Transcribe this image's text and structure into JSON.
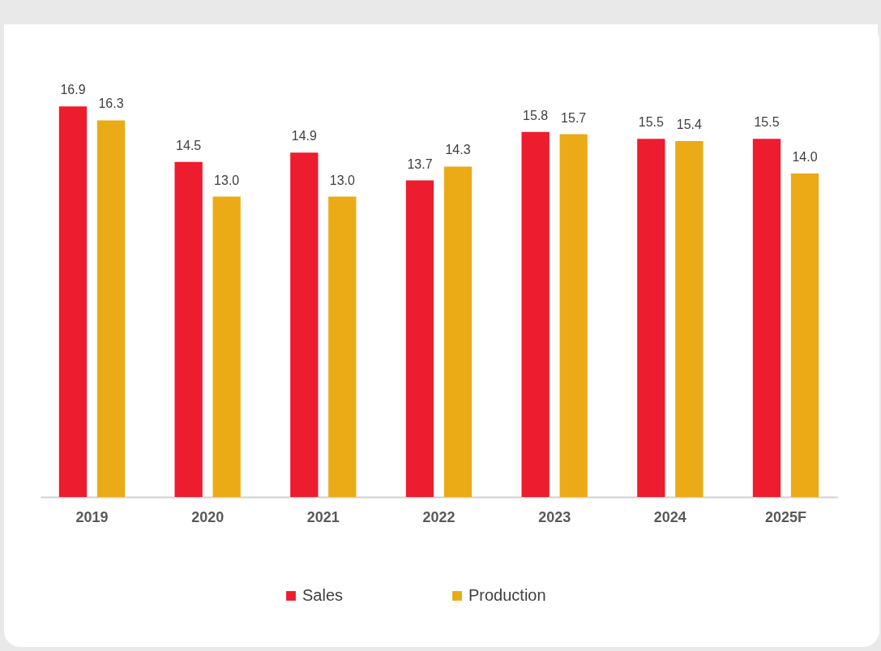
{
  "chart_data": {
    "type": "bar",
    "categories": [
      "2019",
      "2020",
      "2021",
      "2022",
      "2023",
      "2024",
      "2025F"
    ],
    "series": [
      {
        "name": "Sales",
        "color": "#ed1c2e",
        "values": [
          16.9,
          14.5,
          14.9,
          13.7,
          15.8,
          15.5,
          15.5
        ],
        "value_labels": [
          "16.9",
          "14.5",
          "14.9",
          "13.7",
          "15.8",
          "15.5",
          "15.5"
        ]
      },
      {
        "name": "Production",
        "color": "#eaab17",
        "values": [
          16.3,
          13.0,
          13.0,
          14.3,
          15.7,
          15.4,
          14.0
        ],
        "value_labels": [
          "16.3",
          "13.0",
          "13.0",
          "14.3",
          "15.7",
          "15.4",
          "14.0"
        ]
      }
    ],
    "legend": "bottom"
  }
}
